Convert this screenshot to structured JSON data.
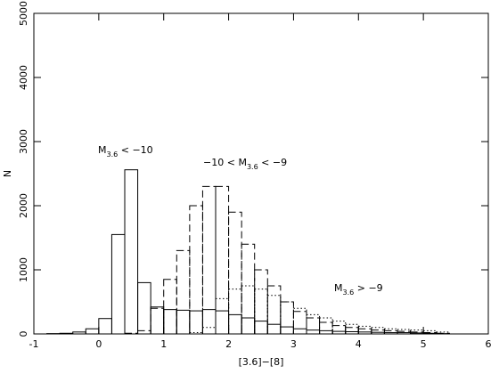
{
  "chart_data": {
    "type": "histogram",
    "xlabel": "[3.6]−[8]",
    "ylabel": "N",
    "bins": [
      -1,
      -0.8,
      -0.6,
      -0.4,
      -0.2,
      0,
      0.2,
      0.4,
      0.6,
      0.8,
      1,
      1.2,
      1.4,
      1.6,
      1.8,
      2,
      2.2,
      2.4,
      2.6,
      2.8,
      3,
      3.2,
      3.4,
      3.6,
      3.8,
      4,
      4.2,
      4.4,
      4.6,
      4.8,
      5,
      5.2,
      5.4
    ],
    "series": [
      {
        "dash": "solid",
        "color": "#000000",
        "values": [
          0,
          5,
          10,
          30,
          80,
          240,
          1550,
          2560,
          800,
          420,
          380,
          370,
          360,
          380,
          360,
          300,
          250,
          200,
          150,
          110,
          80,
          60,
          50,
          40,
          35,
          30,
          25,
          20,
          20,
          15,
          10,
          5
        ]
      },
      {
        "dash": "dashed",
        "color": "#000000",
        "values": [
          0,
          0,
          0,
          0,
          0,
          0,
          0,
          10,
          50,
          400,
          850,
          1300,
          2000,
          2300,
          2300,
          1900,
          1400,
          1000,
          750,
          500,
          350,
          250,
          180,
          130,
          100,
          80,
          60,
          50,
          40,
          30,
          20,
          10
        ]
      },
      {
        "dash": "dotted",
        "color": "#000000",
        "values": [
          0,
          0,
          0,
          0,
          0,
          0,
          0,
          0,
          0,
          0,
          0,
          0,
          20,
          100,
          550,
          700,
          750,
          700,
          600,
          500,
          400,
          300,
          250,
          200,
          150,
          120,
          100,
          80,
          70,
          60,
          50,
          30
        ]
      }
    ],
    "annotations": [
      {
        "main": "M",
        "sub": "3.6",
        "after": " < −10"
      },
      {
        "before": "−10 < ",
        "main": "M",
        "sub": "3.6",
        "after": " < −9"
      },
      {
        "main": "M",
        "sub": "3.6",
        "after": " > −9"
      }
    ],
    "xlim": [
      -1,
      6
    ],
    "xticks": [
      -1,
      0,
      1,
      2,
      3,
      4,
      5,
      6
    ],
    "ylim": [
      0,
      5000
    ],
    "yticks": [
      0,
      1000,
      2000,
      3000,
      4000,
      5000
    ]
  }
}
